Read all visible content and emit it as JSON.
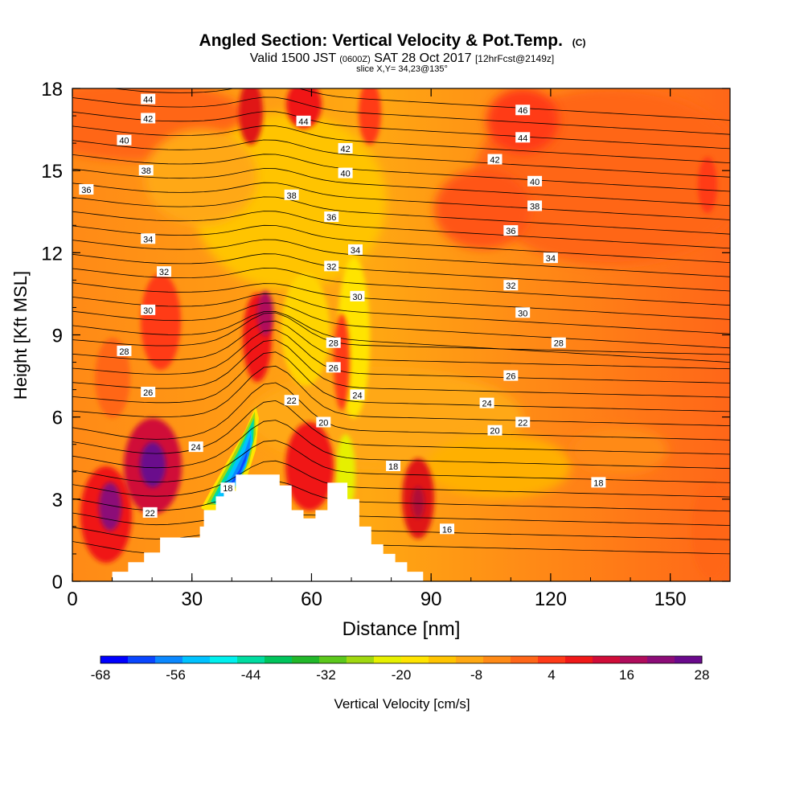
{
  "chart_data": {
    "type": "heatmap",
    "title": "Angled Section: Vertical Velocity & Pot.Temp.",
    "title_unit": "(C)",
    "subtitle_parts": [
      "Valid 1500 JST",
      "(0600Z)",
      "SAT 28 Oct 2017",
      "[12hrFcst@2149z]"
    ],
    "slice_label": "slice X,Y= 34,23@135°",
    "xlabel": "Distance [nm]",
    "ylabel": "Height [Kft MSL]",
    "xlim": [
      0,
      165
    ],
    "ylim": [
      0,
      18
    ],
    "x_ticks": [
      "0",
      "30",
      "60",
      "90",
      "120",
      "150"
    ],
    "y_ticks": [
      "0",
      "3",
      "6",
      "9",
      "12",
      "15",
      "18"
    ],
    "colorbar": {
      "label": "Vertical Velocity [cm/s]",
      "tick_labels": [
        "-68",
        "-56",
        "-44",
        "-32",
        "-20",
        "-8",
        "4",
        "16",
        "28"
      ],
      "colors": [
        "#0000ff",
        "#0a46ff",
        "#0b88ff",
        "#00c2ff",
        "#00f0ee",
        "#00dca0",
        "#00c45c",
        "#22b82a",
        "#5cc81c",
        "#a0d810",
        "#e6f000",
        "#ffe400",
        "#ffc400",
        "#ffa812",
        "#ff8a16",
        "#ff6618",
        "#ff3a18",
        "#f01818",
        "#d00c38",
        "#b00c5c",
        "#8c0c78",
        "#6a0a8c"
      ]
    },
    "contour_field": "Potential Temperature (C)",
    "contour_labels": [
      {
        "value": "44",
        "x": 19,
        "y": 17.6
      },
      {
        "value": "42",
        "x": 19,
        "y": 16.9
      },
      {
        "value": "40",
        "x": 13,
        "y": 16.1
      },
      {
        "value": "38",
        "x": 18.5,
        "y": 15.0
      },
      {
        "value": "36",
        "x": 3.5,
        "y": 14.3
      },
      {
        "value": "34",
        "x": 19,
        "y": 12.5
      },
      {
        "value": "32",
        "x": 23,
        "y": 11.3
      },
      {
        "value": "30",
        "x": 19,
        "y": 9.9
      },
      {
        "value": "28",
        "x": 13,
        "y": 8.4
      },
      {
        "value": "26",
        "x": 19,
        "y": 6.9
      },
      {
        "value": "24",
        "x": 31,
        "y": 4.9
      },
      {
        "value": "22",
        "x": 19.5,
        "y": 2.5
      },
      {
        "value": "44",
        "x": 58,
        "y": 16.8
      },
      {
        "value": "42",
        "x": 68.5,
        "y": 15.8
      },
      {
        "value": "40",
        "x": 68.5,
        "y": 14.9
      },
      {
        "value": "38",
        "x": 55,
        "y": 14.1
      },
      {
        "value": "36",
        "x": 65,
        "y": 13.3
      },
      {
        "value": "34",
        "x": 71,
        "y": 12.1
      },
      {
        "value": "32",
        "x": 65,
        "y": 11.5
      },
      {
        "value": "30",
        "x": 71.5,
        "y": 10.4
      },
      {
        "value": "28",
        "x": 65.5,
        "y": 8.7
      },
      {
        "value": "26",
        "x": 65.5,
        "y": 7.8
      },
      {
        "value": "24",
        "x": 71.5,
        "y": 6.8
      },
      {
        "value": "22",
        "x": 55,
        "y": 6.6
      },
      {
        "value": "20",
        "x": 63,
        "y": 5.8
      },
      {
        "value": "18",
        "x": 39,
        "y": 3.4
      },
      {
        "value": "18",
        "x": 80.5,
        "y": 4.2
      },
      {
        "value": "16",
        "x": 94,
        "y": 1.9
      },
      {
        "value": "46",
        "x": 113,
        "y": 17.2
      },
      {
        "value": "44",
        "x": 113,
        "y": 16.2
      },
      {
        "value": "42",
        "x": 106,
        "y": 15.4
      },
      {
        "value": "40",
        "x": 116,
        "y": 14.6
      },
      {
        "value": "38",
        "x": 116,
        "y": 13.7
      },
      {
        "value": "36",
        "x": 110,
        "y": 12.8
      },
      {
        "value": "34",
        "x": 120,
        "y": 11.8
      },
      {
        "value": "32",
        "x": 110,
        "y": 10.8
      },
      {
        "value": "30",
        "x": 113,
        "y": 9.8
      },
      {
        "value": "28",
        "x": 122,
        "y": 8.7
      },
      {
        "value": "26",
        "x": 110,
        "y": 7.5
      },
      {
        "value": "24",
        "x": 104,
        "y": 6.5
      },
      {
        "value": "22",
        "x": 113,
        "y": 5.8
      },
      {
        "value": "20",
        "x": 106,
        "y": 5.5
      },
      {
        "value": "18",
        "x": 132,
        "y": 3.6
      }
    ]
  }
}
